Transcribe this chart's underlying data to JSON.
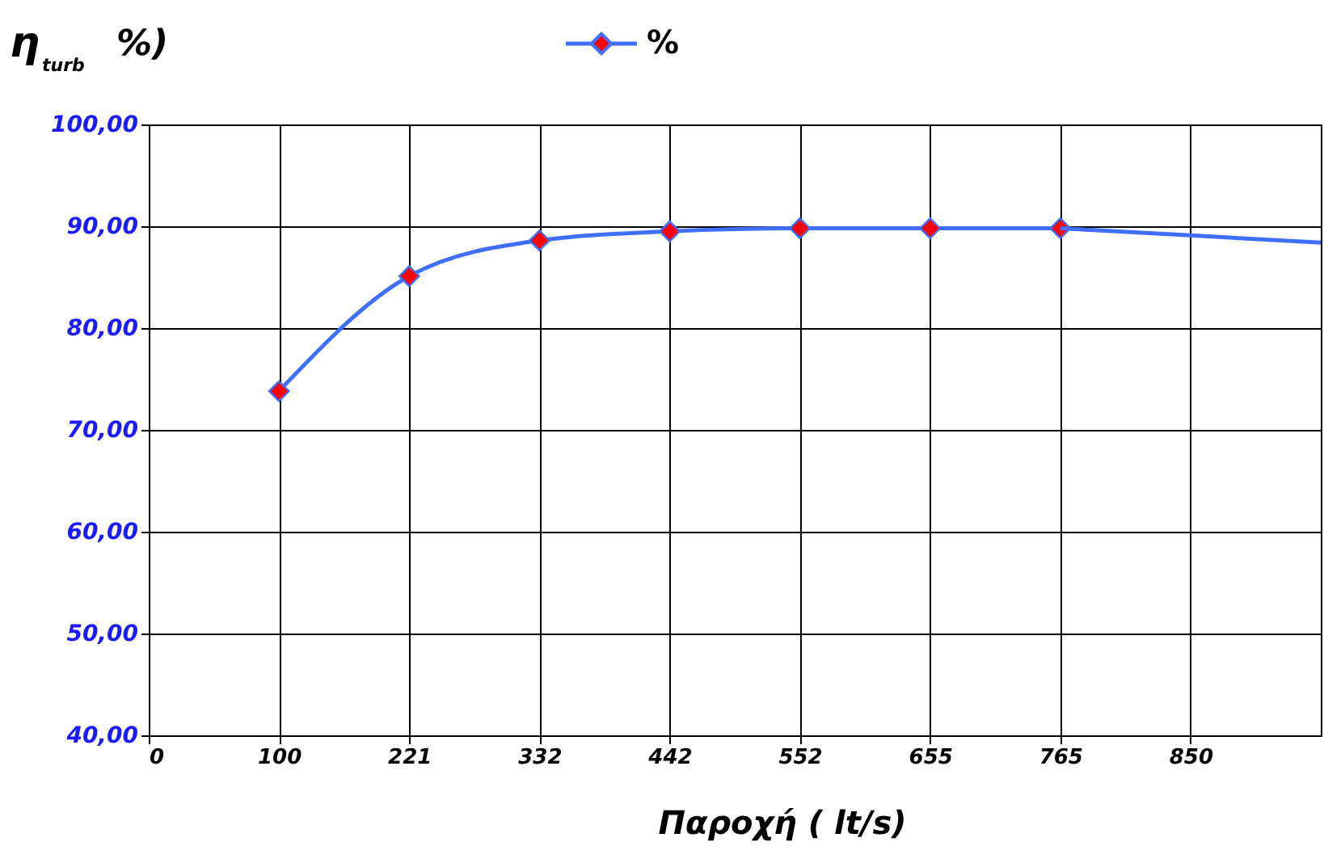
{
  "chart_data": {
    "type": "line",
    "ylabel": "η$_{turb}$ %)",
    "xlabel": "Παροχή ( lt/s)",
    "categories": [
      "0",
      "100",
      "221",
      "332",
      "442",
      "552",
      "655",
      "765",
      "850",
      null
    ],
    "series": [
      {
        "name": "%",
        "color": "#3f6fff",
        "marker": "diamond",
        "values": [
          null,
          73.8,
          85.1,
          88.6,
          89.5,
          89.8,
          89.8,
          89.8,
          null,
          null
        ]
      },
      {
        "color": "#3f6fff",
        "marker": "none",
        "values": [
          null,
          null,
          null,
          null,
          null,
          null,
          null,
          89.8,
          89.1,
          88.4
        ]
      }
    ],
    "ylim": [
      40,
      100
    ],
    "yticks": [
      {
        "value": 40,
        "label": "40,00"
      },
      {
        "value": 50,
        "label": "50,00"
      },
      {
        "value": 60,
        "label": "60,00"
      },
      {
        "value": 70,
        "label": "70,00"
      },
      {
        "value": 80,
        "label": "80,00"
      },
      {
        "value": 90,
        "label": "90,00"
      },
      {
        "value": 100,
        "label": "100,00"
      }
    ],
    "grid": true,
    "legend": "top",
    "line_style": "solid"
  }
}
